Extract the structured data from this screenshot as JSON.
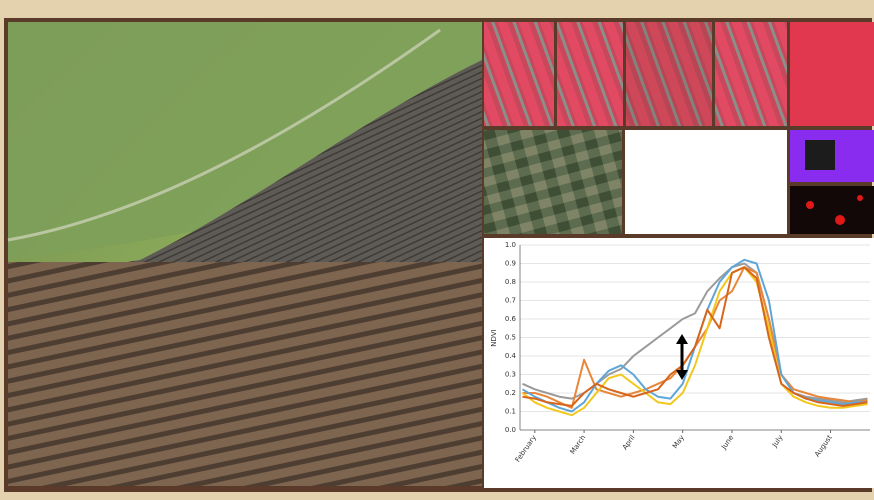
{
  "chart_data": {
    "type": "line",
    "y_label": "NDVI",
    "x": [
      -0.25,
      0,
      0.25,
      0.5,
      0.75,
      1,
      1.25,
      1.5,
      1.75,
      2,
      2.25,
      2.5,
      2.75,
      3,
      3.25,
      3.5,
      3.75,
      4,
      4.25,
      4.5,
      4.75,
      5,
      5.25,
      5.5,
      5.75,
      6,
      6.25,
      6.5,
      6.75
    ],
    "xlim": [
      -0.3,
      6.8
    ],
    "xticks": [
      {
        "value": 0,
        "label": "February"
      },
      {
        "value": 1,
        "label": "March"
      },
      {
        "value": 2,
        "label": "April"
      },
      {
        "value": 3,
        "label": "May"
      },
      {
        "value": 4,
        "label": "June"
      },
      {
        "value": 5,
        "label": "July"
      },
      {
        "value": 6,
        "label": "August"
      }
    ],
    "ylim": [
      0,
      1
    ],
    "yticks": [
      {
        "value": 0,
        "label": "0.0"
      },
      0.1,
      0.2,
      0.3,
      0.4,
      0.5,
      0.6,
      0.7,
      0.8,
      0.9,
      {
        "value": 1,
        "label": "1.0"
      }
    ],
    "grid": true,
    "series": [
      {
        "color": "#9a9a9a",
        "values": [
          0.25,
          0.22,
          0.2,
          0.18,
          0.17,
          0.2,
          0.25,
          0.3,
          0.33,
          0.4,
          0.45,
          0.5,
          0.55,
          0.6,
          0.63,
          0.75,
          0.82,
          0.88,
          0.9,
          0.85,
          0.6,
          0.3,
          0.2,
          0.18,
          0.17,
          0.16,
          0.15,
          0.16,
          0.17
        ]
      },
      {
        "color": "#e8863a",
        "values": [
          0.2,
          0.2,
          0.18,
          0.15,
          0.12,
          0.38,
          0.22,
          0.2,
          0.18,
          0.2,
          0.22,
          0.25,
          0.28,
          0.35,
          0.45,
          0.55,
          0.7,
          0.75,
          0.88,
          0.85,
          0.6,
          0.3,
          0.22,
          0.2,
          0.18,
          0.17,
          0.16,
          0.15,
          0.16
        ]
      },
      {
        "color": "#5fa6d8",
        "values": [
          0.22,
          0.18,
          0.15,
          0.12,
          0.1,
          0.15,
          0.25,
          0.32,
          0.35,
          0.3,
          0.22,
          0.18,
          0.17,
          0.25,
          0.45,
          0.65,
          0.8,
          0.88,
          0.92,
          0.9,
          0.7,
          0.3,
          0.2,
          0.17,
          0.16,
          0.15,
          0.14,
          0.15,
          0.15
        ]
      },
      {
        "color": "#f2c81e",
        "values": [
          0.2,
          0.15,
          0.12,
          0.1,
          0.08,
          0.12,
          0.2,
          0.28,
          0.3,
          0.25,
          0.2,
          0.15,
          0.14,
          0.2,
          0.35,
          0.55,
          0.75,
          0.85,
          0.88,
          0.8,
          0.55,
          0.25,
          0.18,
          0.15,
          0.13,
          0.12,
          0.12,
          0.13,
          0.14
        ]
      },
      {
        "color": "#d7661c",
        "values": [
          0.18,
          0.17,
          0.15,
          0.14,
          0.13,
          0.2,
          0.25,
          0.22,
          0.2,
          0.18,
          0.2,
          0.22,
          0.3,
          0.35,
          0.45,
          0.65,
          0.55,
          0.85,
          0.88,
          0.82,
          0.5,
          0.25,
          0.2,
          0.17,
          0.15,
          0.14,
          0.13,
          0.14,
          0.15
        ]
      }
    ]
  }
}
